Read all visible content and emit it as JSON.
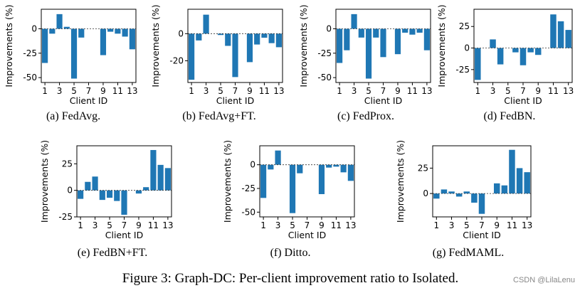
{
  "figure_caption": "Figure 3: Graph-DC: Per-client improvement ratio to Isolated.",
  "watermark": "CSDN @LilaLenu",
  "bar_color": "#1f77b4",
  "chart_data": [
    {
      "type": "bar",
      "caption": "(a) FedAvg.",
      "xlabel": "Client ID",
      "ylabel": "Improvements (%)",
      "categories": [
        1,
        2,
        3,
        4,
        5,
        6,
        7,
        8,
        9,
        10,
        11,
        12,
        13
      ],
      "xtick_labels": [
        "1",
        "3",
        "5",
        "7",
        "9",
        "11",
        "13"
      ],
      "values": [
        -35,
        -5,
        15,
        2,
        -51,
        -9,
        0,
        0,
        -27,
        -3,
        -5,
        -8,
        -21
      ],
      "ylim": [
        -55,
        20
      ],
      "yticks": [
        -50,
        -25,
        0
      ]
    },
    {
      "type": "bar",
      "caption": "(b) FedAvg+FT.",
      "xlabel": "Client ID",
      "ylabel": "Improvements (%)",
      "categories": [
        1,
        2,
        3,
        4,
        5,
        6,
        7,
        8,
        9,
        10,
        11,
        12,
        13
      ],
      "xtick_labels": [
        "1",
        "3",
        "5",
        "7",
        "9",
        "11",
        "13"
      ],
      "values": [
        -34,
        -5,
        14,
        0,
        -1,
        -9,
        -32,
        0,
        -21,
        -8,
        -3,
        -7,
        -10
      ],
      "ylim": [
        -36,
        18
      ],
      "yticks": [
        -20,
        0
      ]
    },
    {
      "type": "bar",
      "caption": "(c) FedProx.",
      "xlabel": "Client ID",
      "ylabel": "Improvements (%)",
      "categories": [
        1,
        2,
        3,
        4,
        5,
        6,
        7,
        8,
        9,
        10,
        11,
        12,
        13
      ],
      "xtick_labels": [
        "1",
        "3",
        "5",
        "7",
        "9",
        "11",
        "13"
      ],
      "values": [
        -35,
        -22,
        15,
        -9,
        -51,
        -9,
        -29,
        0,
        -26,
        -4,
        -6,
        -4,
        -22
      ],
      "ylim": [
        -55,
        20
      ],
      "yticks": [
        -50,
        -25,
        0
      ]
    },
    {
      "type": "bar",
      "caption": "(d) FedBN.",
      "xlabel": "Client ID",
      "ylabel": "Improvements (%)",
      "categories": [
        1,
        2,
        3,
        4,
        5,
        6,
        7,
        8,
        9,
        10,
        11,
        12,
        13
      ],
      "xtick_labels": [
        "1",
        "3",
        "5",
        "7",
        "9",
        "11",
        "13"
      ],
      "values": [
        -37,
        0,
        10,
        -19,
        0,
        -5,
        -20,
        -5,
        -8,
        0,
        39,
        31,
        21
      ],
      "ylim": [
        -40,
        45
      ],
      "yticks": [
        -25,
        0,
        25
      ]
    },
    {
      "type": "bar",
      "caption": "(e) FedBN+FT.",
      "xlabel": "Client ID",
      "ylabel": "Improvements (%)",
      "categories": [
        1,
        2,
        3,
        4,
        5,
        6,
        7,
        8,
        9,
        10,
        11,
        12,
        13
      ],
      "xtick_labels": [
        "1",
        "3",
        "5",
        "7",
        "9",
        "11",
        "13"
      ],
      "values": [
        -8,
        8,
        13,
        -9,
        -7,
        -10,
        -23,
        0,
        -3,
        3,
        38,
        24,
        21
      ],
      "ylim": [
        -25,
        42
      ],
      "yticks": [
        -25,
        0,
        25
      ]
    },
    {
      "type": "bar",
      "caption": "(f) Ditto.",
      "xlabel": "Client ID",
      "ylabel": "Improvements (%)",
      "categories": [
        1,
        2,
        3,
        4,
        5,
        6,
        7,
        8,
        9,
        10,
        11,
        12,
        13
      ],
      "xtick_labels": [
        "1",
        "3",
        "5",
        "7",
        "9",
        "11",
        "13"
      ],
      "values": [
        -35,
        -5,
        15,
        0,
        -51,
        -9,
        0,
        0,
        -31,
        -3,
        -2,
        -8,
        -17
      ],
      "ylim": [
        -55,
        20
      ],
      "yticks": [
        -50,
        -25,
        0
      ]
    },
    {
      "type": "bar",
      "caption": "(g) FedMAML.",
      "xlabel": "Client ID",
      "ylabel": "Improvements (%)",
      "categories": [
        1,
        2,
        3,
        4,
        5,
        6,
        7,
        8,
        9,
        10,
        11,
        12,
        13
      ],
      "xtick_labels": [
        "1",
        "3",
        "5",
        "7",
        "9",
        "11",
        "13"
      ],
      "values": [
        -5,
        4,
        2,
        -3,
        2,
        -9,
        -20,
        0,
        10,
        8,
        43,
        25,
        21
      ],
      "ylim": [
        -23,
        47
      ],
      "yticks": [
        0,
        25
      ]
    }
  ]
}
